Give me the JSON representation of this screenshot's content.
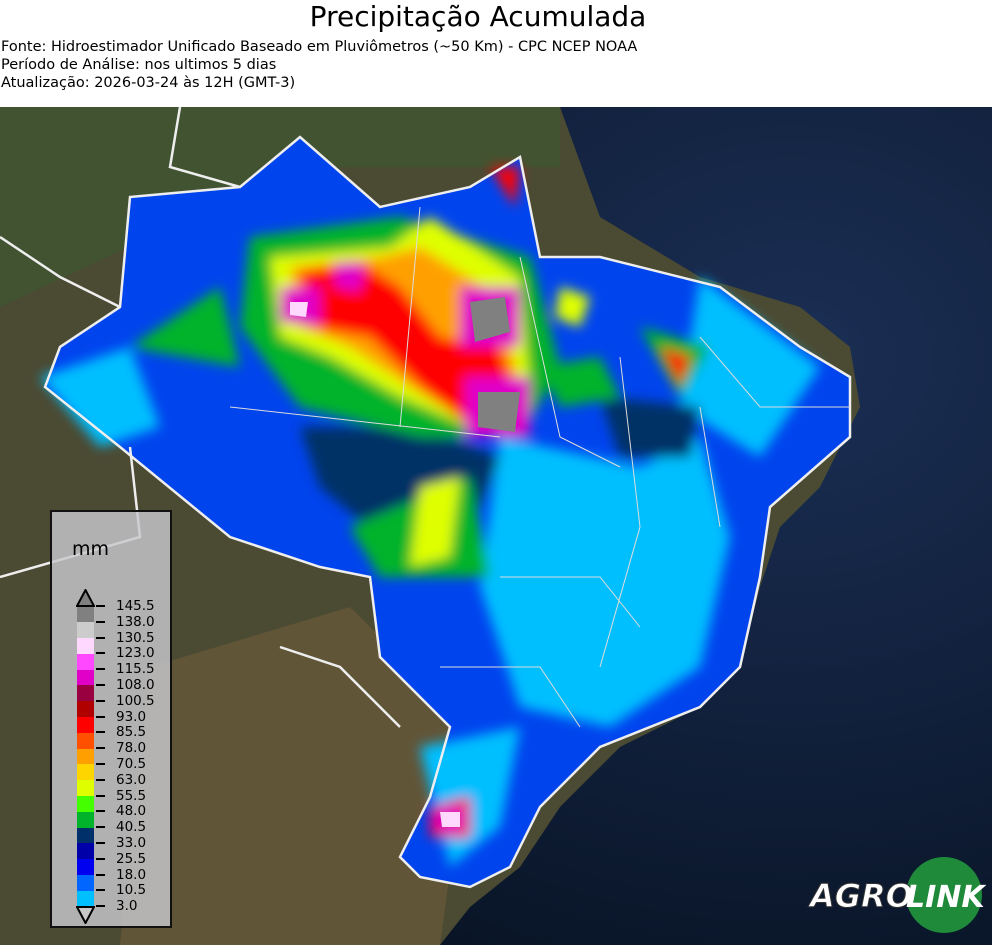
{
  "header": {
    "title": "Precipitação Acumulada",
    "source": "Fonte: Hidroestimador Unificado Baseado em Pluviômetros (~50 Km) - CPC NCEP NOAA",
    "period": "Período de Análise: nos ultimos 5 dias",
    "updated": "Atualização: 2026-03-24 às 12H (GMT-3)"
  },
  "legend": {
    "unit": "mm",
    "ticks": [
      "3.0",
      "10.5",
      "18.0",
      "25.5",
      "33.0",
      "40.5",
      "48.0",
      "55.5",
      "63.0",
      "70.5",
      "78.0",
      "85.5",
      "93.0",
      "100.5",
      "108.0",
      "115.5",
      "123.0",
      "130.5",
      "138.0",
      "145.5"
    ],
    "colors": [
      "#00bfff",
      "#0066ff",
      "#0000f0",
      "#0000a8",
      "#00306a",
      "#00b32a",
      "#44ff00",
      "#dfff00",
      "#ffd500",
      "#ffa000",
      "#ff5000",
      "#ff0000",
      "#b00000",
      "#990040",
      "#e000c8",
      "#ff48ff",
      "#ffd8ff",
      "#cccccc",
      "#808080"
    ],
    "under_color": "#c8c8c8",
    "over_color": "#808080"
  },
  "logo": {
    "text_left": "AGRO",
    "text_right": "LINK",
    "color": "#1f8a3a"
  }
}
